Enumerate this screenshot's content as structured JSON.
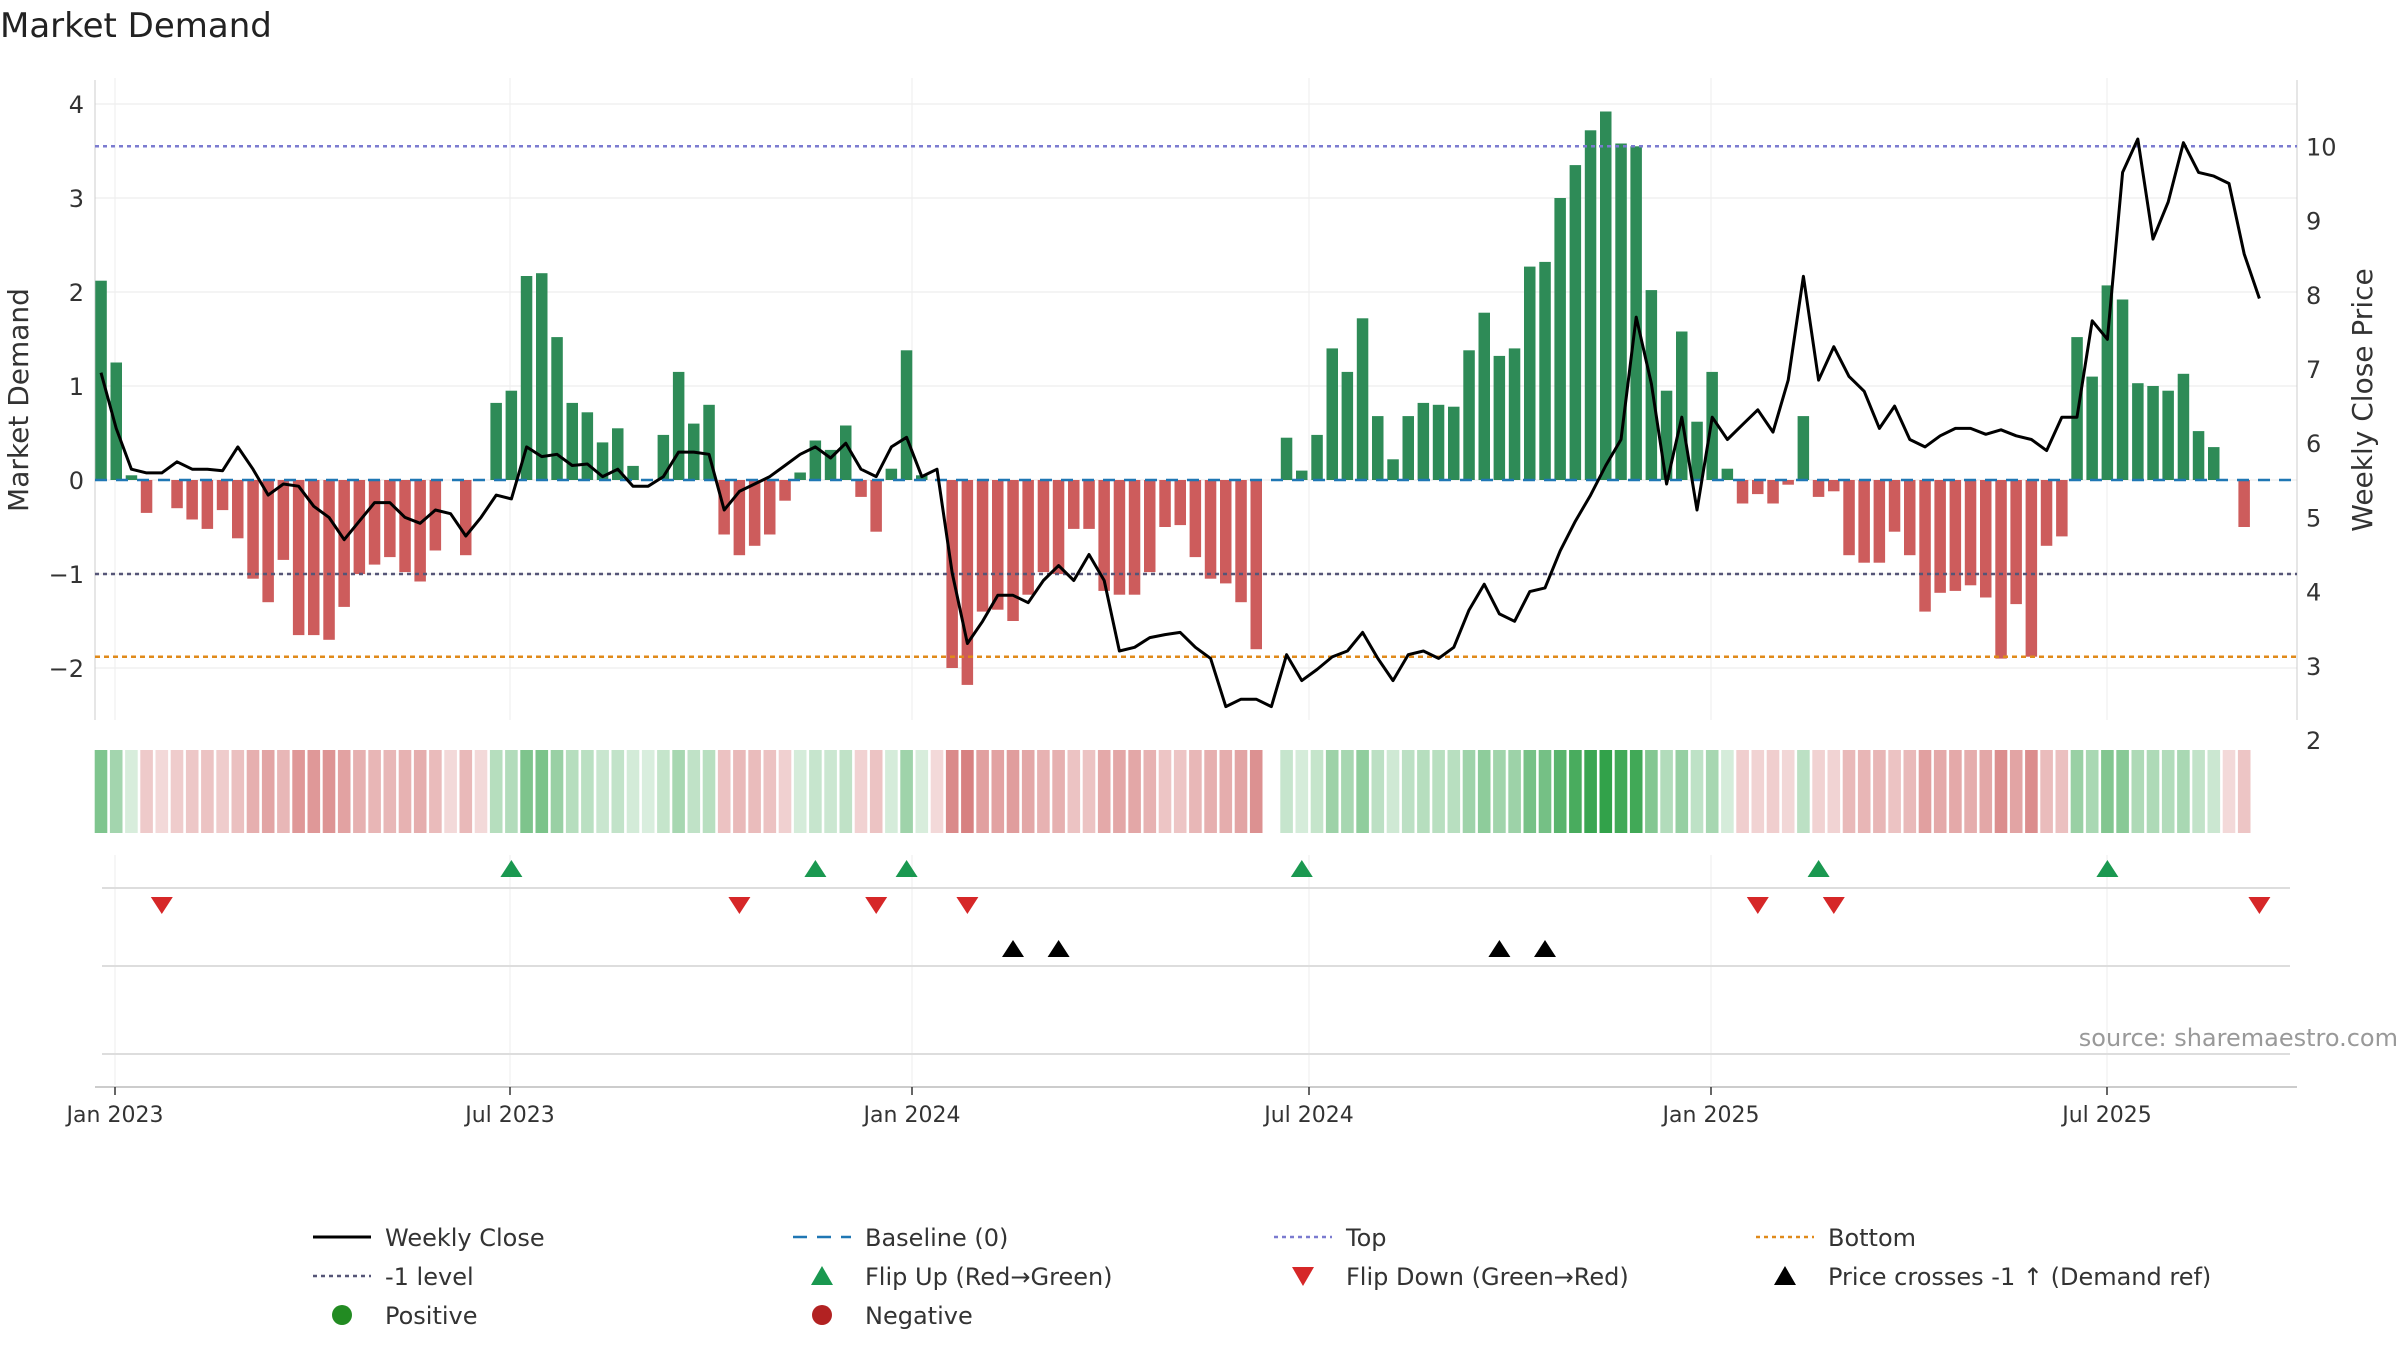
{
  "chart_data": {
    "type": "bar",
    "title": "Market Demand",
    "ylabel_left": "Market Demand",
    "ylabel_right": "Weekly Close Price",
    "source": "source: sharemaestro.com",
    "y_left_ticks": [
      "4",
      "3",
      "2",
      "1",
      "0",
      "−1",
      "−2"
    ],
    "y_left_range": [
      -2.5,
      4.2
    ],
    "y_right_ticks": [
      "10",
      "9",
      "8",
      "7",
      "6",
      "5",
      "4",
      "3",
      "2"
    ],
    "y_right_range": [
      1.8,
      10.2
    ],
    "x_tick_labels": [
      "Jan 2023",
      "Jul 2023",
      "Jan 2024",
      "Jul 2024",
      "Jan 2025",
      "Jul 2025"
    ],
    "reference_levels": {
      "top": 3.55,
      "minus_one": -1.0,
      "bottom": -1.88
    },
    "colors": {
      "positive": "#2e8b57",
      "negative": "#cd5c5c",
      "close": "#000000",
      "baseline": "#1f77b4",
      "top": "#7b7bd0",
      "minus_one": "#555577",
      "bottom": "#e08a1a",
      "flip_up": "#1a9850",
      "flip_down": "#d62728",
      "legend_positive": "#228b22",
      "legend_negative": "#b22222"
    },
    "demand": [
      2.12,
      1.25,
      0.05,
      -0.35,
      -0.02,
      -0.3,
      -0.42,
      -0.52,
      -0.32,
      -0.62,
      -1.05,
      -1.3,
      -0.85,
      -1.65,
      -1.65,
      -1.7,
      -1.35,
      -1.0,
      -0.9,
      -0.82,
      -0.98,
      -1.08,
      -0.75,
      -0.02,
      -0.8,
      -0.02,
      0.82,
      0.95,
      2.17,
      2.2,
      1.52,
      0.82,
      0.72,
      0.4,
      0.55,
      0.15,
      0.02,
      0.48,
      1.15,
      0.6,
      0.8,
      -0.58,
      -0.8,
      -0.7,
      -0.58,
      -0.22,
      0.08,
      0.42,
      0.32,
      0.58,
      -0.18,
      -0.55,
      0.12,
      1.38,
      0.05,
      -0.02,
      -2.0,
      -2.18,
      -1.4,
      -1.38,
      -1.5,
      -1.22,
      -0.98,
      -1.0,
      -0.52,
      -0.52,
      -1.18,
      -1.22,
      -1.22,
      -0.98,
      -0.5,
      -0.48,
      -0.82,
      -1.05,
      -1.1,
      -1.3,
      -1.8,
      0.0,
      0.45,
      0.1,
      0.48,
      1.4,
      1.15,
      1.72,
      0.68,
      0.22,
      0.68,
      0.82,
      0.8,
      0.78,
      1.38,
      1.78,
      1.32,
      1.4,
      2.27,
      2.32,
      3.0,
      3.35,
      3.72,
      3.92,
      3.58,
      3.55,
      2.02,
      0.95,
      1.58,
      0.62,
      1.15,
      0.12,
      -0.25,
      -0.15,
      -0.25,
      -0.05,
      0.68,
      -0.18,
      -0.12,
      -0.8,
      -0.88,
      -0.88,
      -0.55,
      -0.8,
      -1.4,
      -1.2,
      -1.18,
      -1.12,
      -1.25,
      -1.9,
      -1.32,
      -1.88,
      -0.7,
      -0.6,
      1.52,
      1.1,
      2.07,
      1.92,
      1.03,
      1.0,
      0.95,
      1.13,
      0.52,
      0.35,
      -0.02,
      -0.5
    ],
    "close": [
      6.95,
      6.2,
      5.65,
      5.6,
      5.6,
      5.75,
      5.65,
      5.65,
      5.63,
      5.95,
      5.65,
      5.3,
      5.45,
      5.42,
      5.15,
      5.0,
      4.7,
      4.95,
      5.2,
      5.2,
      5.0,
      4.92,
      5.1,
      5.05,
      4.75,
      5.0,
      5.3,
      5.25,
      5.95,
      5.82,
      5.85,
      5.7,
      5.72,
      5.55,
      5.65,
      5.42,
      5.42,
      5.55,
      5.88,
      5.88,
      5.85,
      5.1,
      5.35,
      5.45,
      5.55,
      5.7,
      5.85,
      5.95,
      5.8,
      6.0,
      5.65,
      5.55,
      5.95,
      6.08,
      5.55,
      5.65,
      4.25,
      3.3,
      3.6,
      3.95,
      3.95,
      3.85,
      4.15,
      4.35,
      4.15,
      4.5,
      4.15,
      3.2,
      3.25,
      3.38,
      3.42,
      3.45,
      3.25,
      3.1,
      2.45,
      2.55,
      2.55,
      2.45,
      3.15,
      2.8,
      2.95,
      3.12,
      3.2,
      3.45,
      3.1,
      2.8,
      3.15,
      3.2,
      3.1,
      3.25,
      3.75,
      4.1,
      3.7,
      3.6,
      4.0,
      4.05,
      4.55,
      4.95,
      5.3,
      5.7,
      6.05,
      7.7,
      6.8,
      5.45,
      6.35,
      5.1,
      6.35,
      6.05,
      6.25,
      6.45,
      6.15,
      6.85,
      8.25,
      6.85,
      7.3,
      6.9,
      6.7,
      6.2,
      6.5,
      6.05,
      5.95,
      6.1,
      6.2,
      6.2,
      6.12,
      6.18,
      6.1,
      6.05,
      5.9,
      6.35,
      6.35,
      7.65,
      7.4,
      9.65,
      10.1,
      8.75,
      9.25,
      10.05,
      9.65,
      9.6,
      9.5,
      8.55,
      7.95
    ],
    "heat_skip": [
      77
    ],
    "flip_up": [
      27,
      47,
      53,
      79,
      113,
      132
    ],
    "flip_down": [
      4,
      42,
      51,
      57,
      109,
      114,
      142
    ],
    "price_cross": [
      60,
      63,
      92,
      95
    ],
    "legend": [
      {
        "label": "Weekly Close",
        "symbol": "solid-line"
      },
      {
        "label": "Baseline (0)",
        "symbol": "dashed-line"
      },
      {
        "label": "Top",
        "symbol": "dotted-line-blue"
      },
      {
        "label": "Bottom",
        "symbol": "dotted-line-orange"
      },
      {
        "label": "-1 level",
        "symbol": "dotted-line-gray"
      },
      {
        "label": "Flip Up (Red→Green)",
        "symbol": "triangle-up-green"
      },
      {
        "label": "Flip Down (Green→Red)",
        "symbol": "triangle-down-red"
      },
      {
        "label": "Price crosses -1 ↑ (Demand ref)",
        "symbol": "triangle-up-black"
      },
      {
        "label": "Positive",
        "symbol": "circle-green"
      },
      {
        "label": "Negative",
        "symbol": "circle-red"
      }
    ]
  }
}
